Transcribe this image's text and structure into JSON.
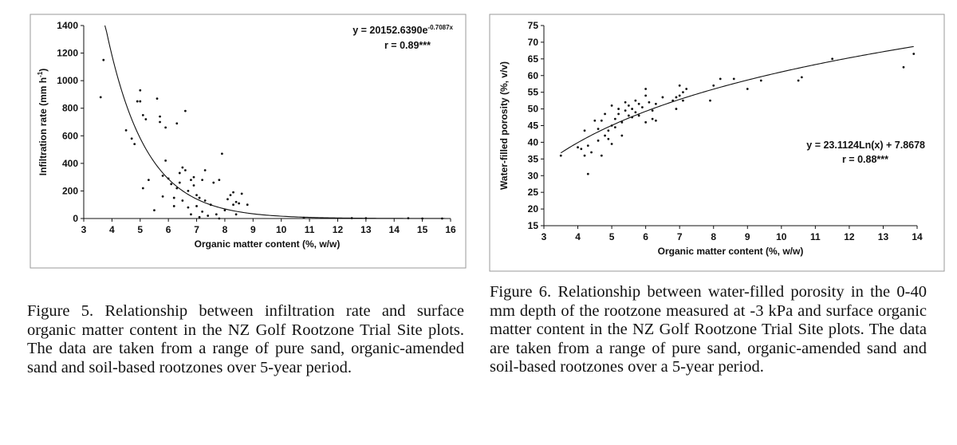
{
  "figures": [
    {
      "caption": "Figure 5. Relationship between infiltration rate and surface organic matter content in the NZ Golf Rootzone Trial Site plots. The data are taken from a range of pure sand, organic-amended sand and soil-based rootzones over 5-year period.",
      "chart_data": {
        "type": "scatter",
        "xlabel": "Organic matter content (%, w/w)",
        "ylabel": "Infiltration rate (mm h",
        "ylabel_sup": "-1",
        "ylabel_end": ")",
        "xlim": [
          3,
          16
        ],
        "ylim": [
          0,
          1400
        ],
        "xticks": [
          3,
          4,
          5,
          6,
          7,
          8,
          9,
          10,
          11,
          12,
          13,
          14,
          15,
          16
        ],
        "yticks": [
          0,
          200,
          400,
          600,
          800,
          1000,
          1200,
          1400
        ],
        "equation_main": "y = 20152.6390e",
        "equation_exp": "-0.7087x",
        "r_label": "r = 0.89***",
        "fit": {
          "kind": "exponential",
          "a": 20152.639,
          "b": -0.7087
        },
        "points": [
          [
            3.6,
            880
          ],
          [
            3.7,
            1150
          ],
          [
            4.5,
            640
          ],
          [
            4.7,
            580
          ],
          [
            4.8,
            540
          ],
          [
            4.9,
            850
          ],
          [
            5.0,
            850
          ],
          [
            5.0,
            930
          ],
          [
            5.1,
            750
          ],
          [
            5.2,
            720
          ],
          [
            5.1,
            220
          ],
          [
            5.3,
            280
          ],
          [
            5.5,
            60
          ],
          [
            5.6,
            870
          ],
          [
            5.7,
            700
          ],
          [
            5.7,
            740
          ],
          [
            5.8,
            160
          ],
          [
            5.8,
            310
          ],
          [
            5.9,
            660
          ],
          [
            5.9,
            420
          ],
          [
            6.0,
            290
          ],
          [
            6.1,
            250
          ],
          [
            6.2,
            150
          ],
          [
            6.2,
            90
          ],
          [
            6.3,
            690
          ],
          [
            6.3,
            220
          ],
          [
            6.4,
            330
          ],
          [
            6.4,
            260
          ],
          [
            6.5,
            370
          ],
          [
            6.5,
            130
          ],
          [
            6.6,
            780
          ],
          [
            6.6,
            350
          ],
          [
            6.7,
            80
          ],
          [
            6.7,
            200
          ],
          [
            6.8,
            280
          ],
          [
            6.8,
            30
          ],
          [
            6.9,
            300
          ],
          [
            6.9,
            240
          ],
          [
            7.0,
            90
          ],
          [
            7.0,
            170
          ],
          [
            7.1,
            150
          ],
          [
            7.1,
            10
          ],
          [
            7.2,
            50
          ],
          [
            7.2,
            280
          ],
          [
            7.3,
            350
          ],
          [
            7.3,
            130
          ],
          [
            7.4,
            20
          ],
          [
            7.5,
            100
          ],
          [
            7.6,
            260
          ],
          [
            7.7,
            30
          ],
          [
            7.8,
            280
          ],
          [
            7.8,
            0
          ],
          [
            7.9,
            470
          ],
          [
            8.0,
            60
          ],
          [
            8.1,
            140
          ],
          [
            8.2,
            170
          ],
          [
            8.3,
            190
          ],
          [
            8.3,
            100
          ],
          [
            8.4,
            120
          ],
          [
            8.4,
            30
          ],
          [
            8.5,
            110
          ],
          [
            8.6,
            180
          ],
          [
            8.8,
            100
          ],
          [
            10.8,
            5
          ],
          [
            12.5,
            3
          ],
          [
            13.0,
            2
          ],
          [
            14.5,
            2
          ],
          [
            15.0,
            0
          ],
          [
            15.7,
            0
          ]
        ]
      }
    },
    {
      "caption": "Figure 6. Relationship between water-filled porosity in the 0-40 mm depth of the rootzone measured at -3 kPa and surface organic matter content in the NZ Golf Rootzone Trial Site plots. The data are taken from a range of pure sand, organic-amended sand and soil-based rootzones over a 5-year period.",
      "chart_data": {
        "type": "scatter",
        "xlabel": "Organic matter content (%, w/w)",
        "ylabel": "Water-filled porosity (%, v/v",
        "ylabel_end": ")",
        "xlim": [
          3,
          14
        ],
        "ylim": [
          15,
          75
        ],
        "xticks": [
          3,
          4,
          5,
          6,
          7,
          8,
          9,
          10,
          11,
          12,
          13,
          14
        ],
        "yticks": [
          15,
          20,
          25,
          30,
          35,
          40,
          45,
          50,
          55,
          60,
          65,
          70,
          75
        ],
        "equation_main": "y = 23.1124Ln(x) + 7.8678",
        "r_label": "r = 0.88***",
        "fit": {
          "kind": "log",
          "a": 23.1124,
          "b": 7.8678
        },
        "points": [
          [
            3.5,
            36
          ],
          [
            4.0,
            38.5
          ],
          [
            4.1,
            38
          ],
          [
            4.2,
            43.5
          ],
          [
            4.2,
            36
          ],
          [
            4.3,
            30.5
          ],
          [
            4.3,
            39
          ],
          [
            4.4,
            37
          ],
          [
            4.5,
            46.5
          ],
          [
            4.6,
            44
          ],
          [
            4.6,
            40.5
          ],
          [
            4.7,
            46.5
          ],
          [
            4.7,
            36
          ],
          [
            4.8,
            42
          ],
          [
            4.8,
            48.5
          ],
          [
            4.9,
            41
          ],
          [
            4.9,
            43.5
          ],
          [
            5.0,
            45
          ],
          [
            5.0,
            51
          ],
          [
            5.0,
            39.5
          ],
          [
            5.1,
            47
          ],
          [
            5.1,
            44.5
          ],
          [
            5.2,
            48.5
          ],
          [
            5.2,
            50
          ],
          [
            5.3,
            42
          ],
          [
            5.3,
            46
          ],
          [
            5.4,
            49.5
          ],
          [
            5.4,
            52
          ],
          [
            5.5,
            48
          ],
          [
            5.5,
            51
          ],
          [
            5.6,
            50
          ],
          [
            5.6,
            47.5
          ],
          [
            5.7,
            49
          ],
          [
            5.7,
            52.5
          ],
          [
            5.8,
            51.5
          ],
          [
            5.8,
            48
          ],
          [
            5.9,
            50.5
          ],
          [
            6.0,
            54
          ],
          [
            6.0,
            46
          ],
          [
            6.0,
            56
          ],
          [
            6.1,
            52
          ],
          [
            6.2,
            49.5
          ],
          [
            6.2,
            47
          ],
          [
            6.3,
            51.5
          ],
          [
            6.3,
            46.5
          ],
          [
            6.5,
            53.5
          ],
          [
            6.8,
            52.5
          ],
          [
            6.9,
            53.5
          ],
          [
            6.9,
            50
          ],
          [
            7.0,
            57
          ],
          [
            7.0,
            54
          ],
          [
            7.1,
            55
          ],
          [
            7.1,
            52.5
          ],
          [
            7.2,
            56
          ],
          [
            7.9,
            52.5
          ],
          [
            8.0,
            57
          ],
          [
            8.2,
            59
          ],
          [
            8.6,
            59
          ],
          [
            9.0,
            56
          ],
          [
            9.4,
            58.5
          ],
          [
            10.5,
            58.5
          ],
          [
            10.6,
            59.5
          ],
          [
            11.5,
            65
          ],
          [
            13.6,
            62.5
          ],
          [
            13.9,
            66.5
          ]
        ]
      }
    }
  ]
}
